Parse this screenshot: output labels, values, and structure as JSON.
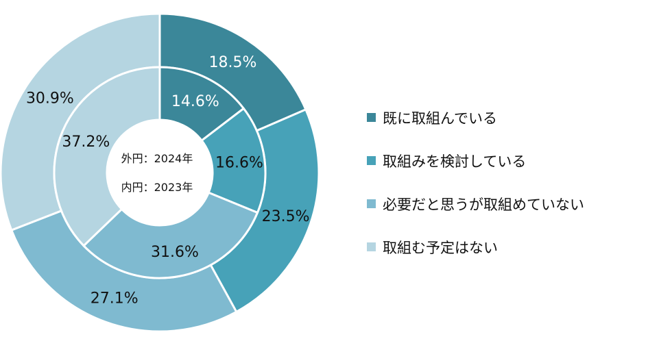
{
  "chart_data": {
    "type": "donut",
    "categories": [
      "既に取組んでいる",
      "取組みを検討している",
      "必要だと思うが取組めていない",
      "取組む予定はない"
    ],
    "colors": [
      "#3b8799",
      "#47a2b8",
      "#7fbad0",
      "#b5d5e1"
    ],
    "series": [
      {
        "name": "外円：2024年",
        "ring": "outer",
        "values": [
          18.5,
          23.5,
          27.1,
          30.9
        ]
      },
      {
        "name": "内円：2023年",
        "ring": "inner",
        "values": [
          14.6,
          16.6,
          31.6,
          37.2
        ]
      }
    ],
    "value_labels_outer": [
      "18.5%",
      "23.5%",
      "27.1%",
      "30.9%"
    ],
    "value_labels_inner": [
      "14.6%",
      "16.6%",
      "31.6%",
      "37.2%"
    ],
    "center_text": [
      "外円：2024年",
      "内円：2023年"
    ],
    "legend_position": "right"
  }
}
